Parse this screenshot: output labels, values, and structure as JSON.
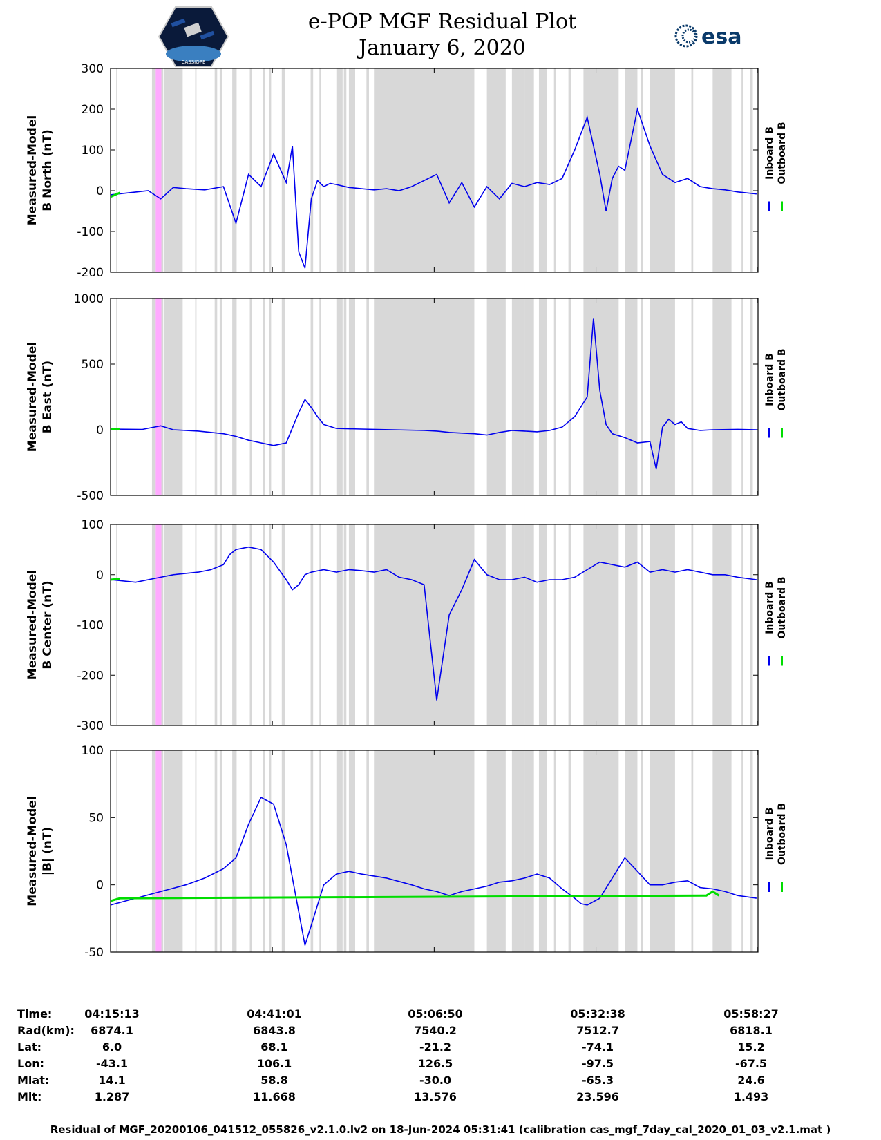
{
  "header": {
    "title_line1": "e-POP MGF Residual Plot",
    "title_line2": "January 6, 2020",
    "logo_left_text": "CASSIOPE",
    "logo_right_text": "esa"
  },
  "legend": {
    "inboard": "Inboard B",
    "outboard": "Outboard B"
  },
  "colors": {
    "inboard": "#0000ee",
    "outboard": "#00dd00",
    "shade": "#d8d8d8",
    "highlight": "#ffaaff"
  },
  "chart_data": [
    {
      "type": "line",
      "name": "north",
      "ylabel_line1": "Measured-Model",
      "ylabel_line2": "B North (nT)",
      "ylim": [
        -200,
        300
      ],
      "yticks": [
        300,
        200,
        100,
        0,
        -100,
        -200
      ],
      "xlim_minutes": [
        0,
        103.23
      ],
      "series": [
        {
          "name": "Inboard B",
          "x": [
            0,
            3,
            6,
            8,
            10,
            12,
            15,
            18,
            20,
            22,
            24,
            26,
            28,
            29,
            30,
            31,
            32,
            33,
            34,
            35,
            36,
            38,
            40,
            42,
            44,
            46,
            48,
            50,
            52,
            54,
            56,
            58,
            60,
            62,
            64,
            66,
            68,
            70,
            72,
            74,
            76,
            78,
            79,
            80,
            81,
            82,
            84,
            86,
            88,
            90,
            92,
            94,
            96,
            98,
            100,
            103
          ],
          "values": [
            -10,
            -5,
            0,
            -20,
            8,
            5,
            2,
            10,
            -80,
            40,
            10,
            90,
            20,
            110,
            -150,
            -190,
            -20,
            25,
            10,
            18,
            15,
            8,
            5,
            2,
            5,
            0,
            10,
            25,
            40,
            -30,
            20,
            -40,
            10,
            -20,
            18,
            10,
            20,
            15,
            30,
            100,
            180,
            40,
            -50,
            30,
            60,
            50,
            200,
            110,
            40,
            20,
            30,
            10,
            5,
            2,
            -3,
            -8
          ]
        },
        {
          "name": "Outboard B",
          "x": [
            0,
            1.5
          ],
          "values": [
            -15,
            -5
          ]
        }
      ],
      "shade_bands_minutes": [
        [
          0.9,
          1.1
        ],
        [
          6.6,
          7.2
        ],
        [
          7.9,
          8.4
        ],
        [
          8.7,
          9.0
        ],
        [
          10.2,
          10.4
        ],
        [
          13.5,
          13.7
        ],
        [
          16.6,
          17.0
        ],
        [
          17.4,
          17.8
        ],
        [
          19.4,
          20.1
        ],
        [
          22.2,
          22.5
        ],
        [
          24.3,
          24.6
        ],
        [
          25.3,
          25.6
        ],
        [
          27.3,
          27.8
        ],
        [
          31.9,
          32.3
        ],
        [
          33.3,
          33.6
        ],
        [
          36.2,
          36.5
        ],
        [
          37.2,
          37.6
        ],
        [
          40.8,
          41.2
        ],
        [
          44.6,
          44.9
        ],
        [
          46.2,
          46.7
        ],
        [
          49.1,
          49.6
        ],
        [
          50.3,
          50.8
        ],
        [
          51.7,
          52.4
        ],
        [
          53.0,
          53.2
        ],
        [
          55.3,
          55.6
        ],
        [
          57.4,
          57.7
        ],
        [
          60.3,
          60.6
        ],
        [
          62.3,
          62.8
        ],
        [
          64.0,
          64.6
        ],
        [
          66.0,
          67.5
        ],
        [
          68.3,
          69.6
        ],
        [
          70.7,
          71.0
        ],
        [
          73.0,
          73.4
        ],
        [
          75.4,
          76.0
        ],
        [
          80.6,
          81.0
        ],
        [
          83.3,
          83.6
        ],
        [
          84.6,
          84.9
        ],
        [
          87.2,
          87.5
        ],
        [
          89.1,
          89.8
        ],
        [
          92.6,
          92.9
        ],
        [
          96.6,
          96.9
        ],
        [
          100.6,
          100.9
        ],
        [
          102.0,
          102.4
        ],
        [
          8.5,
          11.5
        ],
        [
          36,
          37
        ],
        [
          38,
          39
        ],
        [
          42,
          58
        ],
        [
          60,
          63
        ],
        [
          64,
          66
        ],
        [
          76,
          81
        ],
        [
          82,
          84
        ],
        [
          86,
          90
        ],
        [
          96,
          99
        ]
      ],
      "highlight_band_minutes": [
        7.2,
        8.1
      ]
    },
    {
      "type": "line",
      "name": "east",
      "ylabel_line1": "Measured-Model",
      "ylabel_line2": "B East (nT)",
      "ylim": [
        -500,
        1000
      ],
      "yticks": [
        1000,
        500,
        0,
        -500
      ],
      "xlim_minutes": [
        0,
        103.23
      ],
      "series": [
        {
          "name": "Inboard B",
          "x": [
            0,
            5,
            8,
            10,
            14,
            16,
            18,
            20,
            22,
            24,
            26,
            28,
            30,
            31,
            32,
            33,
            34,
            36,
            40,
            45,
            50,
            52,
            54,
            56,
            58,
            60,
            62,
            64,
            66,
            68,
            70,
            72,
            74,
            76,
            77,
            78,
            79,
            80,
            82,
            84,
            86,
            87,
            88,
            89,
            90,
            91,
            92,
            94,
            96,
            100,
            103
          ],
          "values": [
            5,
            2,
            30,
            0,
            -10,
            -20,
            -30,
            -50,
            -80,
            -100,
            -120,
            -100,
            130,
            230,
            170,
            100,
            40,
            10,
            5,
            0,
            -5,
            -10,
            -20,
            -25,
            -30,
            -40,
            -20,
            -5,
            -10,
            -15,
            -5,
            20,
            100,
            250,
            850,
            300,
            40,
            -30,
            -60,
            -100,
            -90,
            -300,
            20,
            80,
            40,
            60,
            10,
            -5,
            0,
            3,
            0
          ]
        },
        {
          "name": "Outboard B",
          "x": [
            0,
            1.5
          ],
          "values": [
            5,
            3
          ]
        }
      ]
    },
    {
      "type": "line",
      "name": "center",
      "ylabel_line1": "Measured-Model",
      "ylabel_line2": "B Center (nT)",
      "ylim": [
        -300,
        100
      ],
      "yticks": [
        100,
        0,
        -100,
        -200,
        -300
      ],
      "xlim_minutes": [
        0,
        103.23
      ],
      "series": [
        {
          "name": "Inboard B",
          "x": [
            0,
            4,
            8,
            10,
            14,
            16,
            18,
            19,
            20,
            22,
            24,
            26,
            28,
            29,
            30,
            31,
            32,
            34,
            36,
            38,
            40,
            42,
            44,
            46,
            48,
            50,
            52,
            54,
            56,
            58,
            60,
            62,
            64,
            66,
            68,
            70,
            72,
            74,
            76,
            78,
            80,
            82,
            84,
            86,
            88,
            90,
            92,
            94,
            96,
            98,
            100,
            103
          ],
          "values": [
            -10,
            -15,
            -5,
            0,
            5,
            10,
            20,
            40,
            50,
            55,
            50,
            25,
            -10,
            -30,
            -20,
            0,
            5,
            10,
            5,
            10,
            8,
            5,
            10,
            -5,
            -10,
            -20,
            -250,
            -80,
            -30,
            30,
            0,
            -10,
            -10,
            -5,
            -15,
            -10,
            -10,
            -5,
            10,
            25,
            20,
            15,
            25,
            5,
            10,
            5,
            10,
            5,
            0,
            0,
            -5,
            -10
          ]
        },
        {
          "name": "Outboard B",
          "x": [
            0,
            1.5
          ],
          "values": [
            -10,
            -8
          ]
        }
      ]
    },
    {
      "type": "line",
      "name": "magnitude",
      "ylabel_line1": "Measured-Model",
      "ylabel_line2": "|B| (nT)",
      "ylim": [
        -50,
        100
      ],
      "yticks": [
        100,
        50,
        0,
        -50
      ],
      "xlim_minutes": [
        0,
        103.23
      ],
      "series": [
        {
          "name": "Inboard B",
          "x": [
            0,
            4,
            8,
            12,
            15,
            18,
            20,
            22,
            24,
            26,
            28,
            30,
            31,
            32,
            34,
            36,
            38,
            40,
            44,
            48,
            50,
            52,
            54,
            56,
            58,
            60,
            62,
            64,
            66,
            68,
            70,
            72,
            74,
            75,
            76,
            78,
            80,
            82,
            84,
            86,
            88,
            90,
            92,
            94,
            96,
            98,
            100,
            103
          ],
          "values": [
            -15,
            -10,
            -5,
            0,
            5,
            12,
            20,
            45,
            65,
            60,
            30,
            -20,
            -45,
            -30,
            0,
            8,
            10,
            8,
            5,
            0,
            -3,
            -5,
            -8,
            -5,
            -3,
            -1,
            2,
            3,
            5,
            8,
            5,
            -3,
            -10,
            -14,
            -15,
            -10,
            5,
            20,
            10,
            0,
            0,
            2,
            3,
            -2,
            -3,
            -5,
            -8,
            -10
          ]
        },
        {
          "name": "Outboard B",
          "x": [
            0,
            1.5,
            95,
            96,
            97
          ],
          "values": [
            -12,
            -10,
            -8,
            -5,
            -8
          ]
        }
      ]
    }
  ],
  "info_table": {
    "row_labels": [
      "Time:",
      "Rad(km):",
      "Lat:",
      "Lon:",
      "Mlat:",
      "Mlt:"
    ],
    "columns": [
      [
        "04:15:13",
        "6874.1",
        "6.0",
        "-43.1",
        "14.1",
        "1.287"
      ],
      [
        "04:41:01",
        "6843.8",
        "68.1",
        "106.1",
        "58.8",
        "11.668"
      ],
      [
        "05:06:50",
        "7540.2",
        "-21.2",
        "126.5",
        "-30.0",
        "13.576"
      ],
      [
        "05:32:38",
        "7512.7",
        "-74.1",
        "-97.5",
        "-65.3",
        "23.596"
      ],
      [
        "05:58:27",
        "6818.1",
        "15.2",
        "-67.5",
        "24.6",
        "1.493"
      ]
    ]
  },
  "footer": "Residual of MGF_20200106_041512_055826_v2.1.0.lv2 on 18-Jun-2024 05:31:41 (calibration cas_mgf_7day_cal_2020_01_03_v2.1.mat )"
}
